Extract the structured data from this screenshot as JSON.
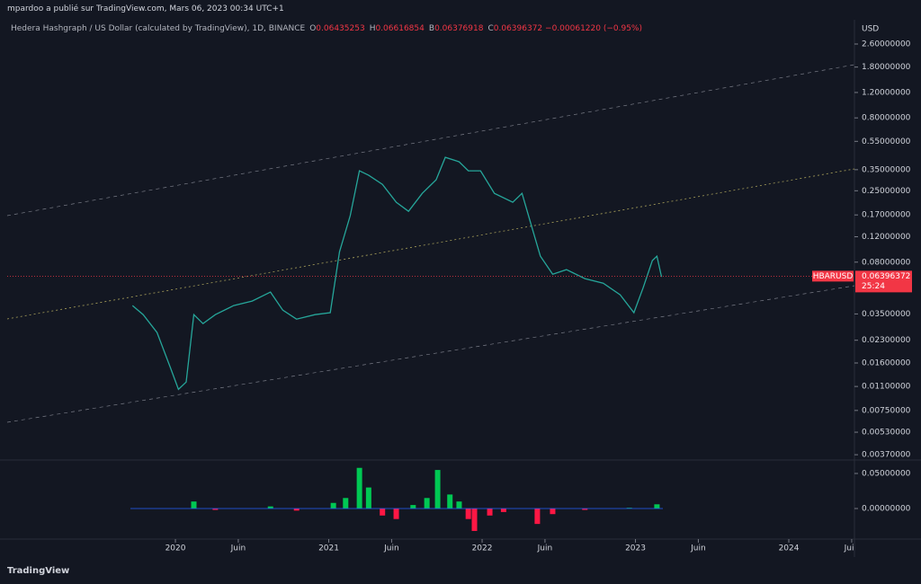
{
  "header": {
    "publisher": "mpardoo a publié sur TradingView.com, Mars 06, 2023 00:34 UTC+1",
    "symbol": "Hedera Hashgraph / US Dollar (calculated by TradingView), 1D, BINANCE",
    "ohlc": [
      {
        "key": "O",
        "value": "0.06435253"
      },
      {
        "key": "H",
        "value": "0.06616854"
      },
      {
        "key": "B",
        "value": "0.06376918"
      },
      {
        "key": "C",
        "value": "0.06396372"
      }
    ],
    "change": "−0.00061220 (−0.95%)",
    "currency": "USD"
  },
  "price_label": {
    "symbol": "HBARUSD",
    "price": 0.06396372,
    "price_text": "0.06396372",
    "countdown": "25:24"
  },
  "footer": {
    "brand": "TradingView"
  },
  "chart_data": [
    {
      "type": "line",
      "log_scale": true,
      "color": "#26a69a",
      "xlim": [
        2018.903,
        2024.428
      ],
      "ylim": [
        0.0034,
        3.83
      ],
      "xticks": [
        {
          "value": 2020,
          "label": "2020"
        },
        {
          "value": 2020.41,
          "label": "Juin"
        },
        {
          "value": 2021,
          "label": "2021"
        },
        {
          "value": 2021.41,
          "label": "Juin"
        },
        {
          "value": 2022,
          "label": "2022"
        },
        {
          "value": 2022.41,
          "label": "Juin"
        },
        {
          "value": 2023,
          "label": "2023"
        },
        {
          "value": 2023.41,
          "label": "Juin"
        },
        {
          "value": 2024,
          "label": "2024"
        },
        {
          "value": 2024.41,
          "label": "Juin"
        }
      ],
      "yticks": [
        {
          "value": 2.6,
          "label": "2.60000000"
        },
        {
          "value": 1.8,
          "label": "1.80000000"
        },
        {
          "value": 1.2,
          "label": "1.20000000"
        },
        {
          "value": 0.8,
          "label": "0.80000000"
        },
        {
          "value": 0.55,
          "label": "0.55000000"
        },
        {
          "value": 0.35,
          "label": "0.35000000"
        },
        {
          "value": 0.25,
          "label": "0.25000000"
        },
        {
          "value": 0.17,
          "label": "0.17000000"
        },
        {
          "value": 0.12,
          "label": "0.12000000"
        },
        {
          "value": 0.08,
          "label": "0.08000000"
        },
        {
          "value": 0.035,
          "label": "0.03500000"
        },
        {
          "value": 0.023,
          "label": "0.02300000"
        },
        {
          "value": 0.016,
          "label": "0.01600000"
        },
        {
          "value": 0.011,
          "label": "0.01100000"
        },
        {
          "value": 0.0075,
          "label": "0.00750000"
        },
        {
          "value": 0.0053,
          "label": "0.00530000"
        },
        {
          "value": 0.0037,
          "label": "0.00370000"
        }
      ],
      "series": [
        {
          "name": "HBARUSD",
          "x": [
            2019.72,
            2019.79,
            2019.88,
            2019.97,
            2020.02,
            2020.07,
            2020.12,
            2020.18,
            2020.26,
            2020.38,
            2020.5,
            2020.62,
            2020.7,
            2020.79,
            2020.91,
            2021.01,
            2021.07,
            2021.14,
            2021.2,
            2021.26,
            2021.35,
            2021.44,
            2021.52,
            2021.61,
            2021.7,
            2021.76,
            2021.85,
            2021.91,
            2021.99,
            2022.08,
            2022.2,
            2022.26,
            2022.32,
            2022.38,
            2022.46,
            2022.55,
            2022.67,
            2022.79,
            2022.9,
            2022.99,
            2023.05,
            2023.11,
            2023.14,
            2023.17
          ],
          "values": [
            0.04,
            0.0346,
            0.026,
            0.0146,
            0.0105,
            0.0118,
            0.0346,
            0.03,
            0.0346,
            0.04,
            0.043,
            0.0496,
            0.0372,
            0.0322,
            0.0346,
            0.0357,
            0.0945,
            0.168,
            0.344,
            0.32,
            0.277,
            0.208,
            0.18,
            0.24,
            0.298,
            0.426,
            0.397,
            0.344,
            0.344,
            0.24,
            0.208,
            0.24,
            0.145,
            0.088,
            0.066,
            0.071,
            0.0615,
            0.0572,
            0.0475,
            0.0357,
            0.0532,
            0.082,
            0.088,
            0.0633
          ]
        }
      ]
    },
    {
      "type": "bar",
      "xlim": [
        2018.903,
        2024.428
      ],
      "ylim": [
        -0.0436,
        0.0692
      ],
      "positive_color": "#00c853",
      "negative_color": "#ff1744",
      "yticks": [
        {
          "value": 0.05,
          "label": "0.05000000"
        },
        {
          "value": 0,
          "label": "0.00000000"
        }
      ],
      "x": [
        2020.12,
        2020.26,
        2020.62,
        2020.79,
        2021.03,
        2021.11,
        2021.2,
        2021.26,
        2021.35,
        2021.44,
        2021.55,
        2021.64,
        2021.71,
        2021.79,
        2021.85,
        2021.91,
        2021.95,
        2022.05,
        2022.14,
        2022.36,
        2022.46,
        2022.67,
        2022.96,
        2023.14
      ],
      "values": [
        0.01,
        -0.002,
        0.003,
        -0.003,
        0.008,
        0.015,
        0.058,
        0.03,
        -0.01,
        -0.015,
        0.005,
        0.015,
        0.055,
        0.02,
        0.01,
        -0.015,
        -0.032,
        -0.01,
        -0.005,
        -0.022,
        -0.008,
        -0.002,
        0.001,
        0.006
      ]
    }
  ]
}
